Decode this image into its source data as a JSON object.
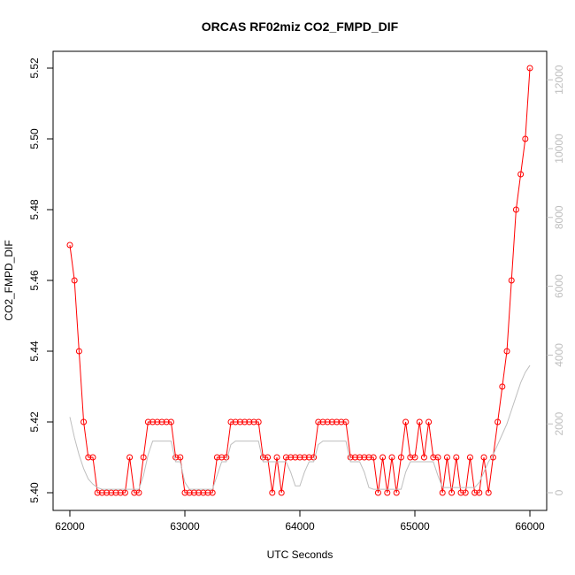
{
  "chart_data": {
    "type": "line",
    "title": "ORCAS RF02miz CO2_FMPD_DIF",
    "x_label": "UTC Seconds",
    "y_label": "CO2_FMPD_DIF",
    "x": [
      62000,
      62040,
      62080,
      62120,
      62160,
      62200,
      62240,
      62280,
      62320,
      62360,
      62400,
      62440,
      62480,
      62520,
      62560,
      62600,
      62640,
      62680,
      62720,
      62760,
      62800,
      62840,
      62880,
      62920,
      62960,
      63000,
      63040,
      63080,
      63120,
      63160,
      63200,
      63240,
      63280,
      63320,
      63360,
      63400,
      63440,
      63480,
      63520,
      63560,
      63600,
      63640,
      63680,
      63720,
      63760,
      63800,
      63840,
      63880,
      63920,
      63960,
      64000,
      64040,
      64080,
      64120,
      64160,
      64200,
      64240,
      64280,
      64320,
      64360,
      64400,
      64440,
      64480,
      64520,
      64560,
      64600,
      64640,
      64680,
      64720,
      64760,
      64800,
      64840,
      64880,
      64920,
      64960,
      65000,
      65040,
      65080,
      65120,
      65160,
      65200,
      65240,
      65280,
      65320,
      65360,
      65400,
      65440,
      65480,
      65520,
      65560,
      65600,
      65640,
      65680,
      65720,
      65760,
      65800,
      65840,
      65880,
      65920,
      65960,
      66000
    ],
    "series": [
      {
        "color": "#ff0000",
        "markers": true,
        "values": [
          5.47,
          5.46,
          5.44,
          5.42,
          5.41,
          5.41,
          5.4,
          5.4,
          5.4,
          5.4,
          5.4,
          5.4,
          5.4,
          5.41,
          5.4,
          5.4,
          5.41,
          5.42,
          5.42,
          5.42,
          5.42,
          5.42,
          5.42,
          5.41,
          5.41,
          5.4,
          5.4,
          5.4,
          5.4,
          5.4,
          5.4,
          5.4,
          5.41,
          5.41,
          5.41,
          5.42,
          5.42,
          5.42,
          5.42,
          5.42,
          5.42,
          5.42,
          5.41,
          5.41,
          5.4,
          5.41,
          5.4,
          5.41,
          5.41,
          5.41,
          5.41,
          5.41,
          5.41,
          5.41,
          5.42,
          5.42,
          5.42,
          5.42,
          5.42,
          5.42,
          5.42,
          5.41,
          5.41,
          5.41,
          5.41,
          5.41,
          5.41,
          5.4,
          5.41,
          5.4,
          5.41,
          5.4,
          5.41,
          5.42,
          5.41,
          5.41,
          5.42,
          5.41,
          5.42,
          5.41,
          5.41,
          5.4,
          5.41,
          5.4,
          5.41,
          5.4,
          5.4,
          5.41,
          5.4,
          5.4,
          5.41,
          5.4,
          5.41,
          5.42,
          5.43,
          5.44,
          5.46,
          5.48,
          5.49,
          5.5,
          5.52
        ]
      },
      {
        "color": "#bebebe",
        "markers": false,
        "axis": "y2",
        "values": [
          2200,
          1600,
          1100,
          700,
          400,
          250,
          150,
          100,
          100,
          100,
          100,
          100,
          100,
          100,
          100,
          100,
          500,
          1100,
          1500,
          1500,
          1500,
          1500,
          1500,
          900,
          900,
          300,
          100,
          100,
          100,
          100,
          100,
          100,
          500,
          900,
          900,
          1400,
          1500,
          1500,
          1500,
          1500,
          1500,
          1500,
          900,
          900,
          900,
          900,
          900,
          900,
          600,
          200,
          200,
          600,
          900,
          900,
          1400,
          1500,
          1500,
          1500,
          1500,
          1500,
          1500,
          900,
          900,
          900,
          600,
          150,
          100,
          100,
          100,
          100,
          100,
          100,
          100,
          600,
          900,
          900,
          900,
          900,
          900,
          900,
          500,
          150,
          150,
          150,
          150,
          150,
          150,
          150,
          150,
          300,
          600,
          900,
          1100,
          1400,
          1700,
          2000,
          2400,
          2800,
          3200,
          3500,
          3700
        ]
      }
    ],
    "xlim": [
      61854,
      66146
    ],
    "ylim": [
      5.395,
      5.52475
    ],
    "y2lim": [
      -514,
      12828
    ],
    "xticks": [
      62000,
      63000,
      64000,
      65000,
      66000
    ],
    "yticks": [
      {
        "value": 5.4,
        "label": "5.40"
      },
      5.42,
      5.44,
      5.46,
      5.48,
      {
        "value": 5.5,
        "label": "5.50"
      },
      5.52
    ],
    "y2ticks": [
      0,
      2000,
      4000,
      6000,
      8000,
      10000,
      12000
    ],
    "y2_tick_color": "#bebebe"
  }
}
